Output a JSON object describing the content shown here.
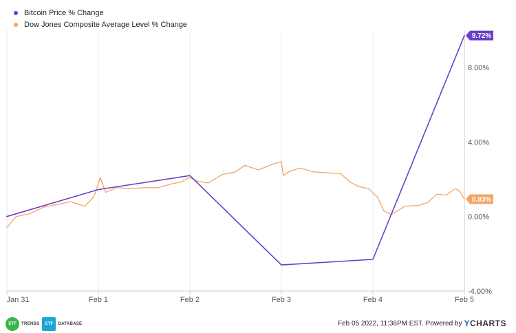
{
  "legend": {
    "items": [
      {
        "label": "Bitcoin Price % Change",
        "color": "#6a3fc8"
      },
      {
        "label": "Dow Jones Composite Average Level % Change",
        "color": "#f4a460"
      }
    ]
  },
  "end_tags": {
    "bitcoin": {
      "label": "9.72%",
      "color": "#6a3fc8"
    },
    "dow": {
      "label": "0.93%",
      "color": "#f4a460"
    }
  },
  "footer": {
    "logo1_badge": "ETF",
    "logo1_word": "TRENDS",
    "logo2_badge": "ETF",
    "logo2_word": "DATABASE",
    "timestamp": "Feb 05 2022, 11:36PM EST. Powered by",
    "brand_y": "Y",
    "brand_rest": "CHARTS"
  },
  "chart_data": {
    "type": "line",
    "x_ticks": [
      "Jan 31",
      "Feb 1",
      "Feb 2",
      "Feb 3",
      "Feb 4",
      "Feb 5"
    ],
    "y_ticks": [
      "8.00%",
      "4.00%",
      "0.00%",
      "-4.00%"
    ],
    "ylim": [
      -4,
      10
    ],
    "y_unit": "%",
    "grid": {
      "vertical": true,
      "horizontal": false
    },
    "series": [
      {
        "name": "Bitcoin Price % Change",
        "color": "#6a3fc8",
        "points": [
          [
            0,
            0.0
          ],
          [
            1,
            1.45
          ],
          [
            2,
            2.2
          ],
          [
            3,
            -2.6
          ],
          [
            4,
            -2.3
          ],
          [
            5,
            9.72
          ]
        ]
      },
      {
        "name": "Dow Jones Composite Average Level % Change",
        "color": "#f4a460",
        "points": [
          [
            0,
            -0.6
          ],
          [
            0.1,
            0.0
          ],
          [
            0.25,
            0.15
          ],
          [
            0.4,
            0.5
          ],
          [
            0.55,
            0.65
          ],
          [
            0.7,
            0.8
          ],
          [
            0.85,
            0.55
          ],
          [
            0.95,
            1.05
          ],
          [
            1.02,
            2.1
          ],
          [
            1.08,
            1.3
          ],
          [
            1.2,
            1.55
          ],
          [
            1.35,
            1.5
          ],
          [
            1.5,
            1.55
          ],
          [
            1.65,
            1.55
          ],
          [
            1.8,
            1.75
          ],
          [
            1.9,
            1.85
          ],
          [
            2.0,
            2.1
          ],
          [
            2.08,
            1.9
          ],
          [
            2.2,
            1.8
          ],
          [
            2.35,
            2.25
          ],
          [
            2.5,
            2.4
          ],
          [
            2.6,
            2.75
          ],
          [
            2.75,
            2.5
          ],
          [
            2.9,
            2.8
          ],
          [
            3.0,
            2.95
          ],
          [
            3.02,
            2.2
          ],
          [
            3.08,
            2.4
          ],
          [
            3.2,
            2.6
          ],
          [
            3.35,
            2.4
          ],
          [
            3.5,
            2.35
          ],
          [
            3.65,
            2.3
          ],
          [
            3.75,
            1.85
          ],
          [
            3.85,
            1.6
          ],
          [
            3.95,
            1.5
          ],
          [
            4.05,
            1.05
          ],
          [
            4.12,
            0.3
          ],
          [
            4.2,
            0.1
          ],
          [
            4.35,
            0.55
          ],
          [
            4.5,
            0.6
          ],
          [
            4.6,
            0.75
          ],
          [
            4.7,
            1.2
          ],
          [
            4.8,
            1.15
          ],
          [
            4.9,
            1.5
          ],
          [
            4.95,
            1.35
          ],
          [
            5.0,
            0.93
          ]
        ]
      }
    ]
  }
}
